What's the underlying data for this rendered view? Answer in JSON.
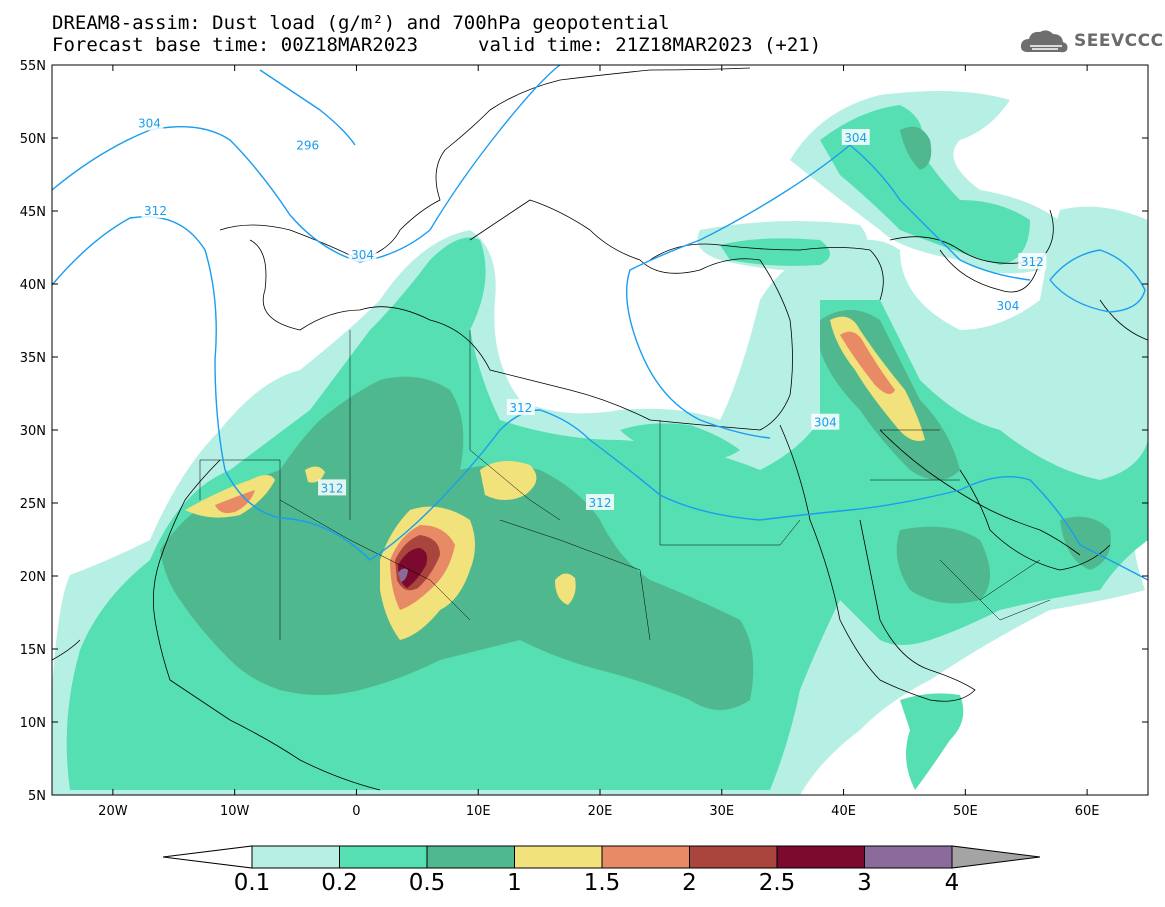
{
  "title": {
    "line1": "DREAM8-assim: Dust load (g/m²) and 700hPa geopotential",
    "line2_left": "Forecast base time: 00Z18MAR2023",
    "line2_right": "valid time: 21Z18MAR2023 (+21)"
  },
  "logo": {
    "text": "SEEVCCC",
    "icon": "cloud-icon"
  },
  "map": {
    "lon_range": [
      -25,
      65
    ],
    "lat_range": [
      5,
      55
    ],
    "lon_ticks": [
      "20W",
      "10W",
      "0",
      "10E",
      "20E",
      "30E",
      "40E",
      "50E",
      "60E"
    ],
    "lat_ticks": [
      "55N",
      "50N",
      "45N",
      "40N",
      "35N",
      "30N",
      "25N",
      "20N",
      "15N",
      "10N",
      "5N"
    ],
    "contour_labels": [
      "304",
      "296",
      "312",
      "304",
      "312",
      "312",
      "304",
      "304",
      "304",
      "312",
      "312"
    ]
  },
  "colorbar": {
    "levels": [
      "0.1",
      "0.2",
      "0.5",
      "1",
      "1.5",
      "2",
      "2.5",
      "3",
      "4"
    ],
    "colors": [
      "#b6efe4",
      "#56dfb2",
      "#4fb88e",
      "#f2e27c",
      "#e88a65",
      "#a9453c",
      "#7c0a2e",
      "#8b6b9c",
      "#a4a4a4"
    ]
  }
}
